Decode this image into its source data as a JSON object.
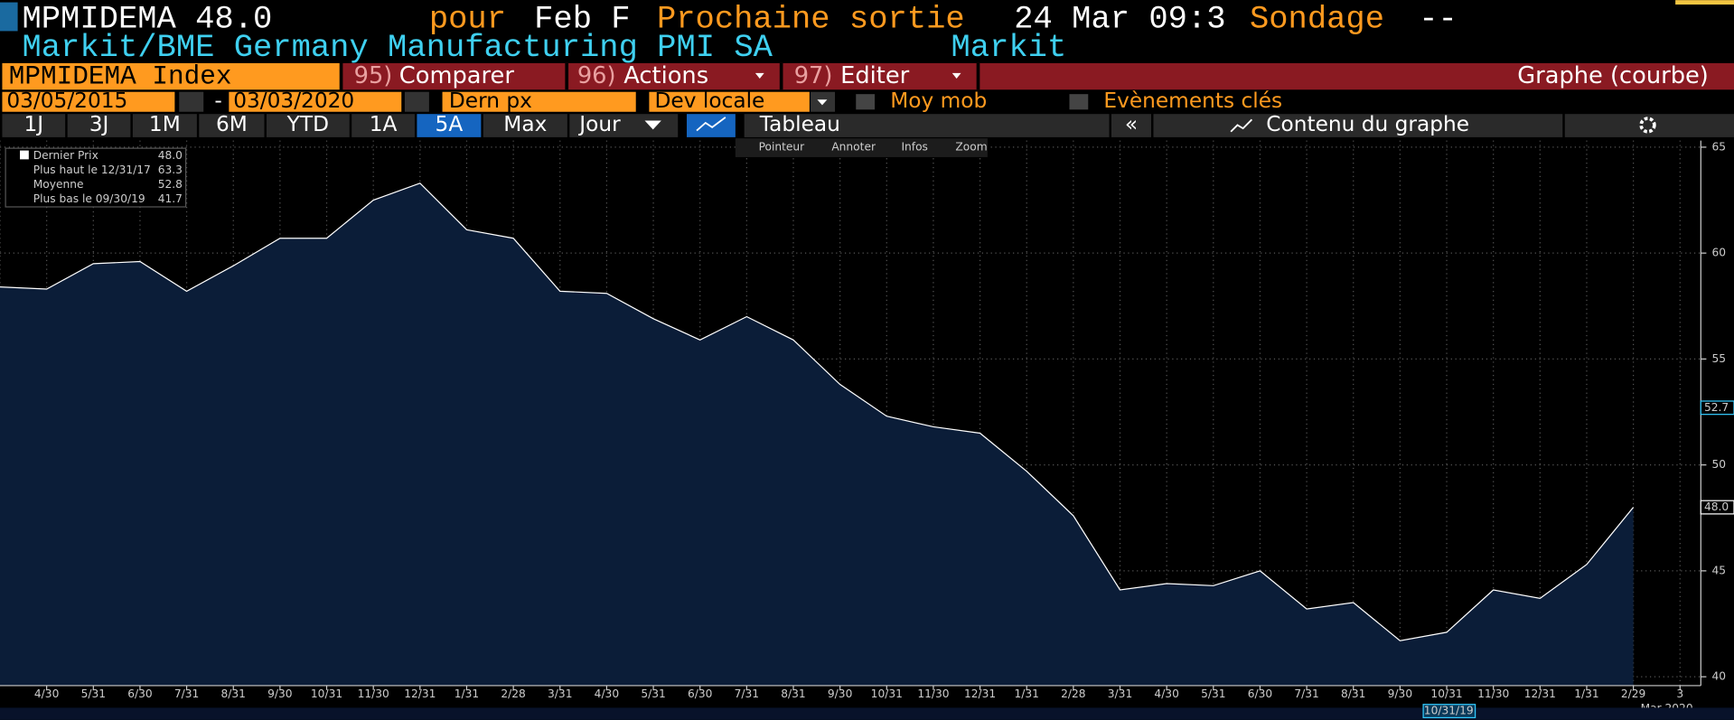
{
  "header": {
    "ticker": "MPMIDEMA 48.0",
    "pour": "pour",
    "period": "Feb F",
    "next_label": "Prochaine sortie",
    "next_value": "24 Mar 09:3",
    "survey_label": "Sondage",
    "survey_value": "--",
    "name": "Markit/BME Germany Manufacturing PMI SA",
    "source": "Markit"
  },
  "menu": {
    "security": "MPMIDEMA Index",
    "items": [
      {
        "num": "95)",
        "label": "Comparer"
      },
      {
        "num": "96)",
        "label": "Actions"
      },
      {
        "num": "97)",
        "label": "Editer"
      }
    ],
    "mode": "Graphe (courbe)"
  },
  "controls": {
    "start": "03/05/2015",
    "sep": "-",
    "end": "03/03/2020",
    "field": "Dern px",
    "currency": "Dev locale",
    "moving": "Moy mob",
    "events": "Evènements clés"
  },
  "toolbar": {
    "ranges": [
      "1J",
      "3J",
      "1M",
      "6M",
      "YTD",
      "1A",
      "5A",
      "Max"
    ],
    "frequency": "Jour",
    "table": "Tableau",
    "content": "Contenu du graphe"
  },
  "tools": [
    "Pointeur",
    "Annoter",
    "Infos",
    "Zoom"
  ],
  "chart_data": {
    "type": "area",
    "legend": [
      {
        "name": "Dernier Prix",
        "value": "48.0"
      },
      {
        "name": "Plus haut le 12/31/17",
        "value": "63.3"
      },
      {
        "name": "Moyenne",
        "value": "52.8"
      },
      {
        "name": "Plus bas le 09/30/19",
        "value": "41.7"
      }
    ],
    "categories": [
      null,
      "4/30",
      "5/31",
      "6/30",
      "7/31",
      "8/31",
      "9/30",
      "10/31",
      "11/30",
      "12/31",
      "1/31",
      "2/28",
      "3/31",
      "4/30",
      "5/31",
      "6/30",
      "7/31",
      "8/31",
      "9/30",
      "10/31",
      "11/30",
      "12/31",
      "1/31",
      "2/28",
      "3/31",
      "4/30",
      "5/31",
      "6/30",
      "7/31",
      "8/31",
      "9/30",
      "10/31",
      "11/30",
      "12/31",
      "1/31",
      "2/29",
      "3"
    ],
    "series": [
      {
        "name": "Dernier Prix",
        "color": "#ffffff",
        "fill": "#0b1d38",
        "values": [
          58.4,
          58.3,
          59.5,
          59.6,
          58.2,
          59.4,
          60.7,
          60.7,
          62.5,
          63.3,
          61.1,
          60.7,
          58.2,
          58.1,
          56.9,
          55.9,
          57.0,
          55.9,
          53.8,
          52.3,
          51.8,
          51.5,
          49.7,
          47.6,
          44.1,
          44.4,
          44.3,
          45.0,
          43.2,
          43.5,
          41.7,
          42.1,
          44.1,
          43.7,
          45.3,
          48.0,
          null
        ]
      }
    ],
    "ylim": [
      40,
      65
    ],
    "yticks": [
      40,
      45,
      50,
      55,
      60,
      65
    ],
    "grid": true,
    "annotations": [
      {
        "label": "52.7",
        "value": 52.7,
        "color": "#33ccff"
      },
      {
        "label": "48.0",
        "value": 48.0,
        "color": "#ffffff"
      }
    ],
    "year_label": "Mar 2020",
    "crosshair_label": "10/31/19"
  }
}
